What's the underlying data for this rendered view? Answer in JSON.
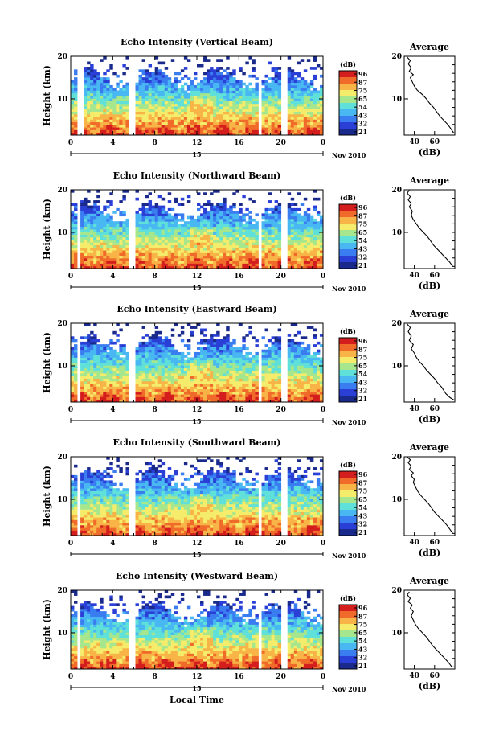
{
  "chart_data": [
    {
      "type": "heatmap",
      "title": "Echo Intensity (Vertical Beam)",
      "ylabel": "Height (km)",
      "xticks": [
        "0",
        "4",
        "8",
        "12",
        "16",
        "20",
        "0"
      ],
      "yticks": [
        "10",
        "20"
      ],
      "xlim": [
        0,
        24
      ],
      "ylim": [
        1.5,
        20
      ],
      "date_label": "15",
      "month_label": "Nov 2010",
      "colorbar": {
        "label": "(dB)",
        "ticks": [
          "96",
          "87",
          "75",
          "65",
          "54",
          "43",
          "32",
          "21"
        ]
      },
      "gaps": [
        [
          0.7,
          1.2
        ],
        [
          5.6,
          6.0
        ],
        [
          17.8,
          18.2
        ],
        [
          20.0,
          20.6
        ]
      ],
      "profile": {
        "title": "Average",
        "xlabel": "(dB)",
        "xticks": [
          "40",
          "60"
        ],
        "yticks": [
          "10",
          "20"
        ],
        "xlim": [
          30,
          80
        ],
        "ylim": [
          1.5,
          20
        ],
        "points": [
          [
            79,
            2
          ],
          [
            76,
            3
          ],
          [
            73,
            4
          ],
          [
            69,
            5
          ],
          [
            65,
            6
          ],
          [
            62,
            7
          ],
          [
            59,
            8
          ],
          [
            55,
            9
          ],
          [
            52,
            10
          ],
          [
            48,
            11
          ],
          [
            43,
            12
          ],
          [
            40,
            13
          ],
          [
            38,
            14
          ],
          [
            36,
            15
          ],
          [
            39,
            15.7
          ],
          [
            35,
            16.5
          ],
          [
            37,
            17.3
          ],
          [
            34,
            18.2
          ],
          [
            36,
            19
          ],
          [
            33,
            19.8
          ]
        ]
      }
    },
    {
      "type": "heatmap",
      "title": "Echo Intensity (Northward Beam)",
      "ylabel": "Height (km)",
      "xticks": [
        "0",
        "4",
        "8",
        "12",
        "16",
        "20",
        "0"
      ],
      "yticks": [
        "10",
        "20"
      ],
      "xlim": [
        0,
        24
      ],
      "ylim": [
        1.5,
        20
      ],
      "date_label": "15",
      "month_label": "Nov 2010",
      "colorbar": {
        "label": "(dB)",
        "ticks": [
          "96",
          "87",
          "75",
          "65",
          "54",
          "43",
          "32",
          "21"
        ]
      },
      "gaps": [
        [
          0.7,
          1.0
        ],
        [
          5.6,
          6.0
        ],
        [
          17.8,
          18.2
        ],
        [
          20.0,
          20.6
        ]
      ],
      "profile": {
        "title": "Average",
        "xlabel": "(dB)",
        "xticks": [
          "40",
          "60"
        ],
        "yticks": [
          "10",
          "20"
        ],
        "xlim": [
          30,
          80
        ],
        "ylim": [
          1.5,
          20
        ],
        "points": [
          [
            78,
            2
          ],
          [
            75,
            3
          ],
          [
            71,
            4
          ],
          [
            67,
            5
          ],
          [
            63,
            6
          ],
          [
            59,
            7
          ],
          [
            56,
            8
          ],
          [
            53,
            9
          ],
          [
            49,
            10
          ],
          [
            45,
            11
          ],
          [
            42,
            12
          ],
          [
            39,
            13
          ],
          [
            37,
            14
          ],
          [
            38,
            15
          ],
          [
            35,
            16
          ],
          [
            37,
            16.8
          ],
          [
            34,
            17.6
          ],
          [
            36,
            18.4
          ],
          [
            33,
            19.2
          ],
          [
            35,
            19.9
          ]
        ]
      }
    },
    {
      "type": "heatmap",
      "title": "Echo Intensity (Eastward Beam)",
      "ylabel": "Height (km)",
      "xticks": [
        "0",
        "4",
        "8",
        "12",
        "16",
        "20",
        "0"
      ],
      "yticks": [
        "10",
        "20"
      ],
      "xlim": [
        0,
        24
      ],
      "ylim": [
        1.5,
        20
      ],
      "date_label": "15",
      "month_label": "Nov 2010",
      "colorbar": {
        "label": "(dB)",
        "ticks": [
          "96",
          "87",
          "75",
          "65",
          "54",
          "43",
          "32",
          "21"
        ]
      },
      "gaps": [
        [
          0.7,
          1.0
        ],
        [
          5.6,
          6.0
        ],
        [
          17.8,
          18.2
        ],
        [
          20.0,
          20.6
        ]
      ],
      "profile": {
        "title": "Average",
        "xlabel": "(dB)",
        "xticks": [
          "40",
          "60"
        ],
        "yticks": [
          "10",
          "20"
        ],
        "xlim": [
          30,
          80
        ],
        "ylim": [
          1.5,
          20
        ],
        "points": [
          [
            79,
            2
          ],
          [
            75,
            2.6
          ],
          [
            71,
            3.5
          ],
          [
            67,
            5
          ],
          [
            63,
            6
          ],
          [
            60,
            7
          ],
          [
            56,
            8
          ],
          [
            52,
            9
          ],
          [
            49,
            10
          ],
          [
            45,
            11
          ],
          [
            42,
            12
          ],
          [
            40,
            13
          ],
          [
            37,
            14
          ],
          [
            39,
            15
          ],
          [
            35,
            16
          ],
          [
            37,
            17
          ],
          [
            34,
            18
          ],
          [
            36,
            19
          ],
          [
            33,
            19.8
          ]
        ]
      }
    },
    {
      "type": "heatmap",
      "title": "Echo Intensity (Southward Beam)",
      "ylabel": "Height (km)",
      "xticks": [
        "0",
        "4",
        "8",
        "12",
        "16",
        "20",
        "0"
      ],
      "yticks": [
        "10",
        "20"
      ],
      "xlim": [
        0,
        24
      ],
      "ylim": [
        1.5,
        20
      ],
      "date_label": "15",
      "month_label": "Nov 2010",
      "colorbar": {
        "label": "(dB)",
        "ticks": [
          "96",
          "87",
          "75",
          "65",
          "54",
          "43",
          "32",
          "21"
        ]
      },
      "gaps": [
        [
          0.7,
          1.0
        ],
        [
          5.6,
          6.0
        ],
        [
          17.8,
          18.2
        ],
        [
          20.0,
          20.6
        ]
      ],
      "profile": {
        "title": "Average",
        "xlabel": "(dB)",
        "xticks": [
          "40",
          "60"
        ],
        "yticks": [
          "10",
          "20"
        ],
        "xlim": [
          30,
          80
        ],
        "ylim": [
          1.5,
          20
        ],
        "points": [
          [
            78,
            2
          ],
          [
            75,
            3
          ],
          [
            72,
            4
          ],
          [
            68,
            5
          ],
          [
            64,
            6
          ],
          [
            60,
            7
          ],
          [
            57,
            8
          ],
          [
            54,
            9
          ],
          [
            50,
            10
          ],
          [
            46,
            11
          ],
          [
            43,
            12
          ],
          [
            41,
            13
          ],
          [
            39,
            14
          ],
          [
            40,
            14.7
          ],
          [
            37,
            15.5
          ],
          [
            39,
            16.2
          ],
          [
            35,
            17
          ],
          [
            37,
            17.8
          ],
          [
            34,
            18.6
          ],
          [
            36,
            19.3
          ],
          [
            33,
            19.9
          ]
        ]
      }
    },
    {
      "type": "heatmap",
      "title": "Echo Intensity (Westward Beam)",
      "ylabel": "Height (km)",
      "xlabel": "Local Time",
      "xticks": [
        "0",
        "4",
        "8",
        "12",
        "16",
        "20",
        "0"
      ],
      "yticks": [
        "10",
        "20"
      ],
      "xlim": [
        0,
        24
      ],
      "ylim": [
        1.5,
        20
      ],
      "date_label": "15",
      "month_label": "Nov 2010",
      "colorbar": {
        "label": "(dB)",
        "ticks": [
          "96",
          "87",
          "75",
          "65",
          "54",
          "43",
          "32",
          "21"
        ]
      },
      "gaps": [
        [
          0.7,
          1.0
        ],
        [
          5.6,
          6.0
        ],
        [
          17.8,
          18.2
        ],
        [
          20.0,
          20.6
        ]
      ],
      "profile": {
        "title": "Average",
        "xlabel": "(dB)",
        "xticks": [
          "40",
          "60"
        ],
        "yticks": [
          "10",
          "20"
        ],
        "xlim": [
          30,
          80
        ],
        "ylim": [
          1.5,
          20
        ],
        "points": [
          [
            77,
            2
          ],
          [
            74,
            3
          ],
          [
            70,
            4
          ],
          [
            66,
            5
          ],
          [
            62,
            6
          ],
          [
            58,
            7
          ],
          [
            55,
            8
          ],
          [
            52,
            9
          ],
          [
            48,
            10
          ],
          [
            44,
            11
          ],
          [
            41,
            12
          ],
          [
            39,
            13
          ],
          [
            37,
            14
          ],
          [
            39,
            15
          ],
          [
            36,
            15.8
          ],
          [
            38,
            16.5
          ],
          [
            34,
            17.3
          ],
          [
            36,
            18.1
          ],
          [
            33,
            18.9
          ],
          [
            35,
            19.6
          ]
        ]
      }
    }
  ],
  "colors": {
    "scale": [
      "#1a2a8c",
      "#2a3fd6",
      "#3a7df0",
      "#49b8f2",
      "#5fe0d8",
      "#a6e68c",
      "#f4ec6a",
      "#f8b447",
      "#f06a2a",
      "#d41e1e"
    ]
  }
}
